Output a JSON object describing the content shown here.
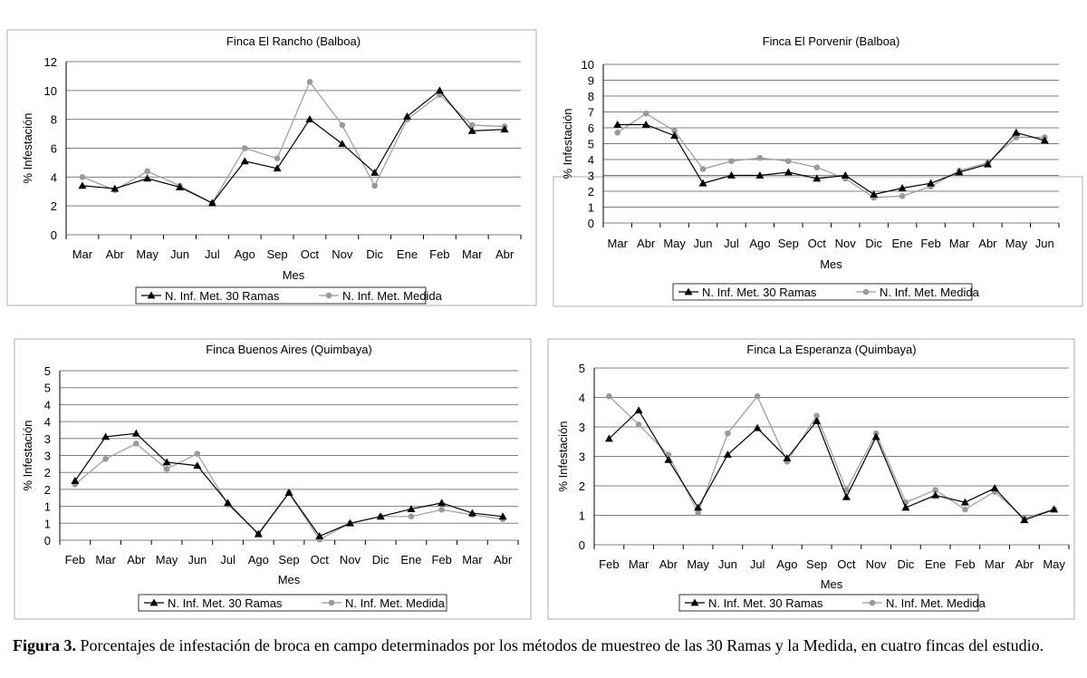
{
  "colors": {
    "series1": "#000000",
    "series2": "#9a9a9a",
    "grid": "#808080",
    "frame": "#999999"
  },
  "caption": {
    "label": "Figura 3.",
    "text": " Porcentajes de infestación de broca en campo determinados por los métodos de muestreo de las 30 Ramas y la Medida, en cuatro fincas del estudio."
  },
  "chart_data": [
    {
      "type": "line",
      "title": "Finca El Rancho (Balboa)",
      "xlabel": "Mes",
      "ylabel": "% Infestación",
      "ylim": [
        0,
        12
      ],
      "yticks": [
        "0",
        "2",
        "4",
        "6",
        "8",
        "10",
        "12"
      ],
      "categories": [
        "Mar",
        "Abr",
        "May",
        "Jun",
        "Jul",
        "Ago",
        "Sep",
        "Oct",
        "Nov",
        "Dic",
        "Ene",
        "Feb",
        "Mar",
        "Abr"
      ],
      "series": [
        {
          "name": "N. Inf. Met. 30 Ramas",
          "marker": "triangle",
          "values": [
            3.4,
            3.2,
            3.9,
            3.3,
            2.2,
            5.1,
            4.6,
            8.0,
            6.3,
            4.3,
            8.2,
            10.0,
            7.2,
            7.3
          ]
        },
        {
          "name": "N. Inf. Met. Medida",
          "marker": "circle",
          "values": [
            4.0,
            3.1,
            4.4,
            3.4,
            2.2,
            6.0,
            5.3,
            10.6,
            7.6,
            3.4,
            8.0,
            9.7,
            7.6,
            7.5
          ]
        }
      ],
      "legend": "bottom"
    },
    {
      "type": "line",
      "title": "Finca El Porvenir (Balboa)",
      "xlabel": "Mes",
      "ylabel": "% Infestación",
      "ylim": [
        0,
        10
      ],
      "yticks": [
        "0",
        "1",
        "2",
        "3",
        "4",
        "5",
        "6",
        "7",
        "8",
        "9",
        "10"
      ],
      "categories": [
        "Mar",
        "Abr",
        "May",
        "Jun",
        "Jul",
        "Ago",
        "Sep",
        "Oct",
        "Nov",
        "Dic",
        "Ene",
        "Feb",
        "Mar",
        "Abr",
        "May",
        "Jun"
      ],
      "series": [
        {
          "name": "N. Inf. Met. 30 Ramas",
          "marker": "triangle",
          "values": [
            6.2,
            6.2,
            5.5,
            2.5,
            3.0,
            3.0,
            3.2,
            2.8,
            3.0,
            1.8,
            2.2,
            2.5,
            3.2,
            3.7,
            5.7,
            5.2
          ]
        },
        {
          "name": "N. Inf. Met. Medida",
          "marker": "circle",
          "values": [
            5.7,
            6.9,
            5.8,
            3.4,
            3.9,
            4.1,
            3.9,
            3.5,
            2.8,
            1.6,
            1.7,
            2.3,
            3.3,
            3.8,
            5.4,
            5.4
          ]
        }
      ],
      "legend": "bottom"
    },
    {
      "type": "line",
      "title": "Finca Buenos Aires (Quimbaya)",
      "xlabel": "Mes",
      "ylabel": "% Infestación",
      "ylim": [
        0,
        5
      ],
      "yticks": [
        "0",
        "1",
        "1",
        "2",
        "2",
        "3",
        "3",
        "4",
        "4",
        "5",
        "5"
      ],
      "categories": [
        "Feb",
        "Mar",
        "Abr",
        "May",
        "Jun",
        "Jul",
        "Ago",
        "Sep",
        "Oct",
        "Nov",
        "Dic",
        "Ene",
        "Feb",
        "Mar",
        "Abr"
      ],
      "series": [
        {
          "name": "N. Inf. Met. 30 Ramas",
          "marker": "triangle",
          "values": [
            1.75,
            3.05,
            3.15,
            2.3,
            2.2,
            1.1,
            0.18,
            1.4,
            0.12,
            0.5,
            0.7,
            0.92,
            1.1,
            0.8,
            0.7
          ]
        },
        {
          "name": "N. Inf. Met. Medida",
          "marker": "circle",
          "values": [
            1.65,
            2.4,
            2.85,
            2.1,
            2.55,
            1.05,
            0.2,
            1.4,
            0.02,
            0.5,
            0.7,
            0.7,
            0.9,
            0.75,
            0.62
          ]
        }
      ],
      "legend": "bottom"
    },
    {
      "type": "line",
      "title": "Finca La Esperanza (Quimbaya)",
      "xlabel": "Mes",
      "ylabel": "% Infestación",
      "ylim": [
        0,
        5
      ],
      "yticks": [
        "0",
        "1",
        "2",
        "3",
        "3",
        "4",
        "5"
      ],
      "categories": [
        "Feb",
        "Mar",
        "Abr",
        "May",
        "Jun",
        "Jul",
        "Ago",
        "Sep",
        "Oct",
        "Nov",
        "Dic",
        "Ene",
        "Feb",
        "Mar",
        "Abr",
        "May"
      ],
      "series": [
        {
          "name": "N. Inf. Met. 30 Ramas",
          "marker": "triangle",
          "values": [
            3.0,
            3.8,
            2.4,
            1.05,
            2.55,
            3.3,
            2.45,
            3.5,
            1.35,
            3.05,
            1.05,
            1.4,
            1.2,
            1.6,
            0.7,
            1.0
          ]
        },
        {
          "name": "N. Inf. Met. Medida",
          "marker": "circle",
          "values": [
            4.2,
            3.4,
            2.55,
            0.9,
            3.15,
            4.2,
            2.35,
            3.65,
            1.55,
            3.15,
            1.2,
            1.55,
            1.0,
            1.5,
            0.75,
            1.0
          ]
        }
      ],
      "legend": "bottom"
    }
  ]
}
